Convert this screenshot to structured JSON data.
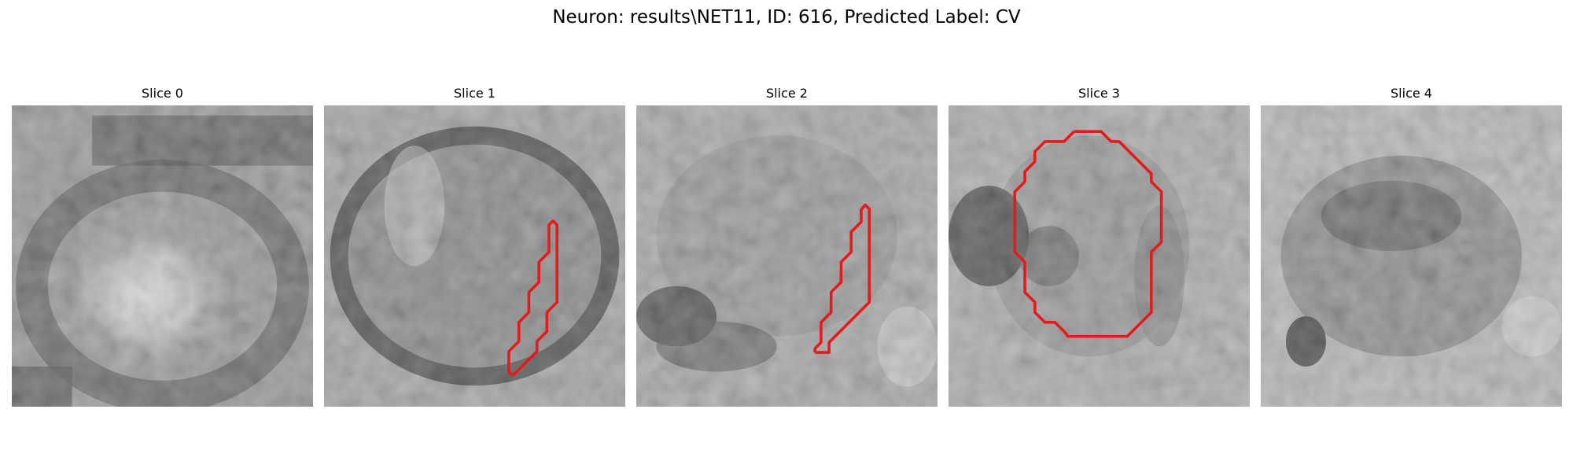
{
  "figure": {
    "title": "Neuron: results\\NET11, ID: 616, Predicted Label: CV"
  },
  "panels": [
    {
      "title": "Slice 0",
      "has_contour": false
    },
    {
      "title": "Slice 1",
      "has_contour": true
    },
    {
      "title": "Slice 2",
      "has_contour": true
    },
    {
      "title": "Slice 3",
      "has_contour": true
    },
    {
      "title": "Slice 4",
      "has_contour": false
    }
  ],
  "colors": {
    "contour": "#e41a1c",
    "background": "#ffffff"
  },
  "colormap": "grayscale"
}
